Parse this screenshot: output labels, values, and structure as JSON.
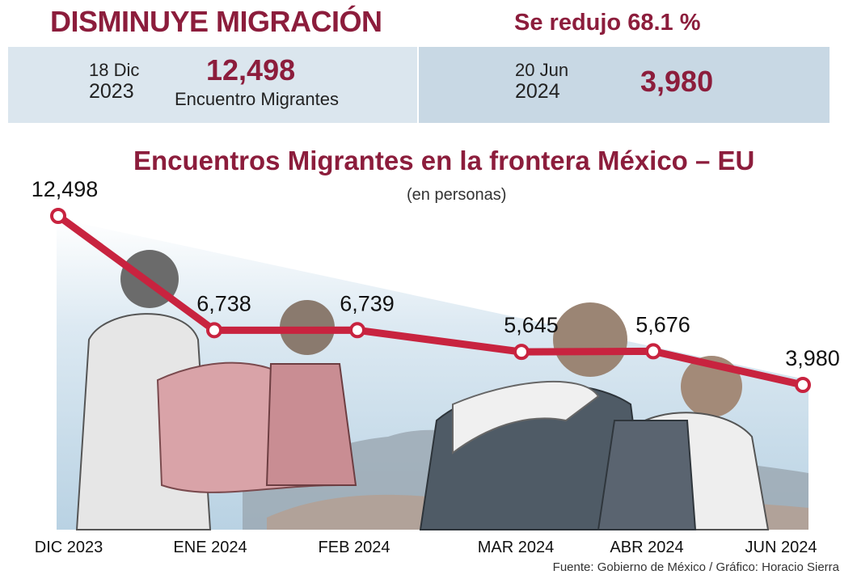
{
  "header": {
    "headline": "DISMINUYE MIGRACIÓN",
    "reduction": "Se redujo 68.1 %"
  },
  "summary": {
    "left": {
      "date_line1": "18 Dic",
      "date_line2": "2023",
      "value": "12,498",
      "label": "Encuentro Migrantes"
    },
    "right": {
      "date_line1": "20 Jun",
      "date_line2": "2024",
      "value": "3,980"
    }
  },
  "chart_data": {
    "type": "line",
    "title": "Encuentros Migrantes en la frontera México – EU",
    "subtitle": "(en personas)",
    "categories": [
      "DIC 2023",
      "ENE 2024",
      "FEB 2024",
      "MAR 2024",
      "ABR 2024",
      "JUN 2024"
    ],
    "series": [
      {
        "values": [
          12498,
          6738,
          6739,
          5645,
          5676,
          3980
        ]
      }
    ],
    "data_labels": [
      "12,498",
      "6,738",
      "6,739",
      "5,645",
      "5,676",
      "3,980"
    ],
    "line_color": "#c8233f",
    "grid": false
  },
  "footer": {
    "source": "Fuente: Gobierno de México / Gráfico: Horacio Sierra"
  }
}
